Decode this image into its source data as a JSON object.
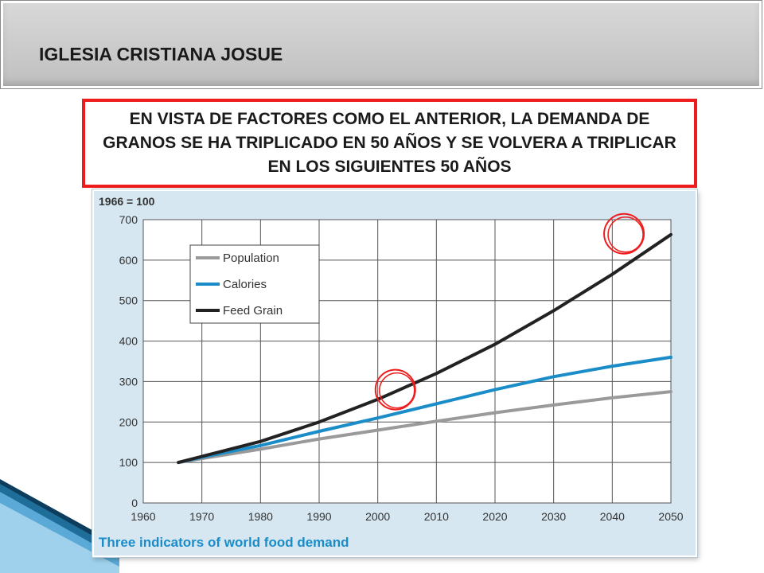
{
  "header": {
    "title": "IGLESIA CRISTIANA JOSUE"
  },
  "callout": {
    "text": "EN VISTA DE FACTORES COMO EL ANTERIOR, LA DEMANDA DE GRANOS SE HA TRIPLICADO EN 50 AÑOS Y SE VOLVERA A TRIPLICAR EN LOS SIGUIENTES 50 AÑOS"
  },
  "colors": {
    "highlight": "#ee1c1c",
    "panel": "#d6e7f2",
    "title_blue": "#1a8cc8"
  },
  "chart_data": {
    "type": "line",
    "index_label": "1966 = 100",
    "caption": "Three indicators of world food demand",
    "xlim": [
      1960,
      2050
    ],
    "ylim": [
      0,
      700
    ],
    "x_ticks": [
      1960,
      1970,
      1980,
      1990,
      2000,
      2010,
      2020,
      2030,
      2040,
      2050
    ],
    "y_ticks": [
      0,
      100,
      200,
      300,
      400,
      500,
      600,
      700
    ],
    "grid": true,
    "legend_position": "top-left",
    "x": [
      1966,
      1970,
      1980,
      1990,
      2000,
      2010,
      2020,
      2030,
      2040,
      2050
    ],
    "series": [
      {
        "name": "Population",
        "color": "#9a9a9a",
        "values": [
          100,
          110,
          133,
          158,
          180,
          202,
          223,
          242,
          260,
          275
        ]
      },
      {
        "name": "Calories",
        "color": "#1a8cc8",
        "values": [
          100,
          113,
          142,
          177,
          210,
          245,
          280,
          312,
          338,
          360
        ]
      },
      {
        "name": "Feed Grain",
        "color": "#222222",
        "values": [
          100,
          115,
          152,
          200,
          256,
          320,
          392,
          475,
          565,
          663
        ]
      }
    ],
    "annotations": [
      {
        "type": "circle",
        "x": 2003,
        "y": 280,
        "color": "#ee1c1c"
      },
      {
        "type": "circle",
        "x": 2042,
        "y": 665,
        "color": "#ee1c1c"
      }
    ]
  }
}
